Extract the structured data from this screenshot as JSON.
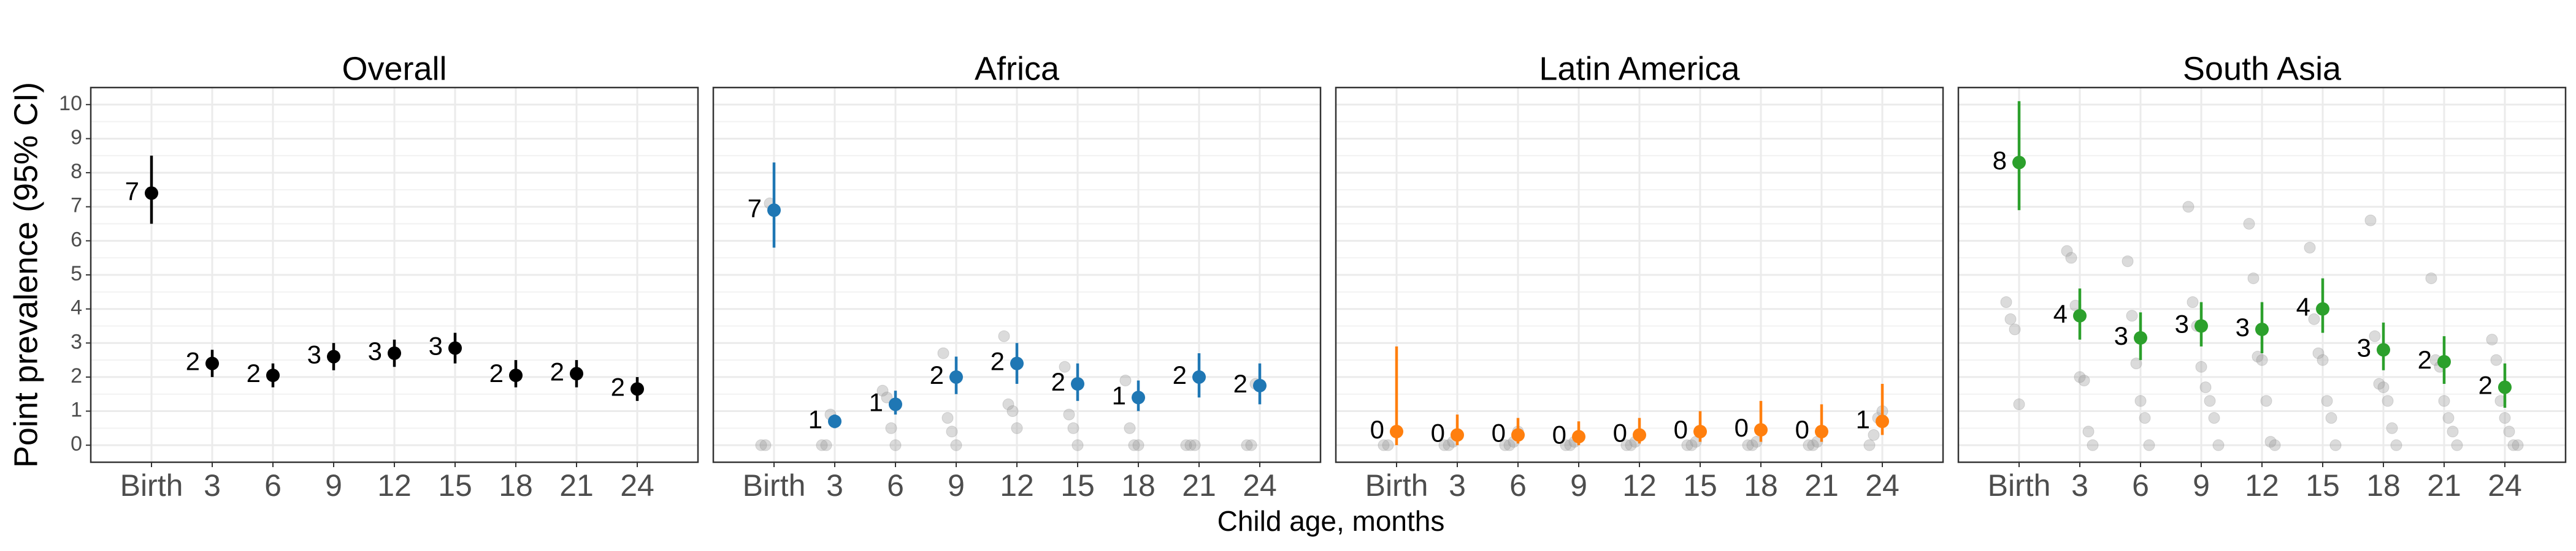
{
  "ylabel": "Point prevalence (95% CI)",
  "xlabel": "Child age, months",
  "chart_data": [
    {
      "type": "errorbar",
      "title": "Overall",
      "color": "#000000",
      "categories": [
        "Birth",
        "3",
        "6",
        "9",
        "12",
        "15",
        "18",
        "21",
        "24"
      ],
      "values": [
        7.4,
        2.4,
        2.05,
        2.6,
        2.7,
        2.85,
        2.05,
        2.1,
        1.65
      ],
      "value_labels": [
        "7",
        "2",
        "2",
        "3",
        "3",
        "3",
        "2",
        "2",
        "2"
      ],
      "lower": [
        6.5,
        2.0,
        1.7,
        2.2,
        2.3,
        2.4,
        1.7,
        1.7,
        1.3
      ],
      "upper": [
        8.5,
        2.8,
        2.4,
        3.0,
        3.1,
        3.3,
        2.5,
        2.5,
        2.0
      ],
      "points": {
        "x": [],
        "values": []
      },
      "ylim": [
        -0.5,
        10.5
      ],
      "yticks": [
        0,
        1,
        2,
        3,
        4,
        5,
        6,
        7,
        8,
        9,
        10
      ],
      "grid": true
    },
    {
      "type": "errorbar",
      "title": "Africa",
      "color": "#1f77b4",
      "categories": [
        "Birth",
        "3",
        "6",
        "9",
        "12",
        "15",
        "18",
        "21",
        "24"
      ],
      "values": [
        6.9,
        0.7,
        1.2,
        2.0,
        2.4,
        1.8,
        1.4,
        2.0,
        1.75
      ],
      "value_labels": [
        "7",
        "1",
        "1",
        "2",
        "2",
        "2",
        "1",
        "2",
        "2"
      ],
      "lower": [
        5.8,
        0.5,
        0.9,
        1.5,
        1.8,
        1.3,
        1.0,
        1.4,
        1.2
      ],
      "upper": [
        8.3,
        0.9,
        1.6,
        2.6,
        3.0,
        2.4,
        1.9,
        2.7,
        2.4
      ],
      "points": {
        "x": [
          "Birth",
          "Birth",
          "Birth",
          "3",
          "3",
          "3",
          "6",
          "6",
          "6",
          "6",
          "9",
          "9",
          "9",
          "9",
          "12",
          "12",
          "12",
          "12",
          "15",
          "15",
          "15",
          "15",
          "18",
          "18",
          "18",
          "18",
          "21",
          "21",
          "21",
          "24",
          "24",
          "24"
        ],
        "values": [
          0,
          0,
          7.1,
          0,
          0,
          0.9,
          1.6,
          1.4,
          0.5,
          0,
          2.7,
          0.8,
          0.4,
          0,
          3.2,
          1.2,
          1.0,
          0.5,
          2.3,
          0.9,
          0.5,
          0,
          1.9,
          0.5,
          0,
          0,
          0,
          0,
          0,
          0,
          0,
          1.8
        ]
      },
      "ylim": [
        -0.5,
        10.5
      ],
      "yticks": [
        0,
        1,
        2,
        3,
        4,
        5,
        6,
        7,
        8,
        9,
        10
      ],
      "grid": true
    },
    {
      "type": "errorbar",
      "title": "Latin America",
      "color": "#ff7f0e",
      "categories": [
        "Birth",
        "3",
        "6",
        "9",
        "12",
        "15",
        "18",
        "21",
        "24"
      ],
      "values": [
        0.4,
        0.3,
        0.3,
        0.25,
        0.3,
        0.4,
        0.45,
        0.4,
        0.7
      ],
      "value_labels": [
        "0",
        "0",
        "0",
        "0",
        "0",
        "0",
        "0",
        "0",
        "1"
      ],
      "lower": [
        0.0,
        0.0,
        0.05,
        0.0,
        0.05,
        0.1,
        0.1,
        0.1,
        0.3
      ],
      "upper": [
        2.9,
        0.9,
        0.8,
        0.7,
        0.8,
        1.0,
        1.3,
        1.2,
        1.8
      ],
      "points": {
        "x": [
          "Birth",
          "Birth",
          "3",
          "3",
          "3",
          "6",
          "6",
          "6",
          "6",
          "9",
          "9",
          "9",
          "12",
          "12",
          "12",
          "15",
          "15",
          "15",
          "15",
          "18",
          "18",
          "18",
          "21",
          "21",
          "21",
          "24",
          "24",
          "24",
          "24"
        ],
        "values": [
          0,
          0,
          0,
          0,
          0.1,
          0,
          0,
          0.1,
          0.4,
          0,
          0,
          0.1,
          0,
          0,
          0.1,
          0,
          0,
          0.1,
          0.4,
          0,
          0,
          0.1,
          0,
          0,
          0.1,
          0,
          0.3,
          0.8,
          1.0
        ]
      },
      "ylim": [
        -0.5,
        10.5
      ],
      "yticks": [
        0,
        1,
        2,
        3,
        4,
        5,
        6,
        7,
        8,
        9,
        10
      ],
      "grid": true
    },
    {
      "type": "errorbar",
      "title": "South Asia",
      "color": "#2ca02c",
      "categories": [
        "Birth",
        "3",
        "6",
        "9",
        "12",
        "15",
        "18",
        "21",
        "24"
      ],
      "values": [
        8.3,
        3.8,
        3.15,
        3.5,
        3.4,
        4.0,
        2.8,
        2.45,
        1.7
      ],
      "value_labels": [
        "8",
        "4",
        "3",
        "3",
        "3",
        "4",
        "3",
        "2",
        "2"
      ],
      "lower": [
        6.9,
        3.1,
        2.5,
        2.9,
        2.7,
        3.3,
        2.2,
        1.8,
        1.1
      ],
      "upper": [
        10.1,
        4.6,
        3.9,
        4.2,
        4.2,
        4.9,
        3.6,
        3.2,
        2.4
      ],
      "points": {
        "x": [
          "Birth",
          "Birth",
          "Birth",
          "Birth",
          "3",
          "3",
          "3",
          "3",
          "3",
          "3",
          "3",
          "6",
          "6",
          "6",
          "6",
          "6",
          "6",
          "9",
          "9",
          "9",
          "9",
          "9",
          "9",
          "9",
          "9",
          "12",
          "12",
          "12",
          "12",
          "12",
          "12",
          "12",
          "15",
          "15",
          "15",
          "15",
          "15",
          "15",
          "15",
          "18",
          "18",
          "18",
          "18",
          "18",
          "18",
          "18",
          "21",
          "21",
          "21",
          "21",
          "21",
          "21",
          "21",
          "24",
          "24",
          "24",
          "24",
          "24",
          "24",
          "24"
        ],
        "values": [
          4.2,
          3.7,
          3.4,
          1.2,
          5.7,
          5.5,
          4.1,
          2.0,
          1.9,
          0.4,
          0,
          5.4,
          3.8,
          2.4,
          1.3,
          0.8,
          0,
          7.0,
          4.2,
          3.5,
          2.3,
          1.7,
          1.3,
          0.8,
          0,
          6.5,
          4.9,
          2.6,
          2.5,
          1.3,
          0.1,
          0,
          5.8,
          3.7,
          2.7,
          2.5,
          1.3,
          0.8,
          0,
          6.6,
          3.2,
          1.8,
          1.7,
          1.3,
          0.5,
          0,
          4.9,
          2.5,
          2.3,
          1.3,
          0.8,
          0.4,
          0,
          3.1,
          2.5,
          1.3,
          0.8,
          0.4,
          0,
          0
        ]
      },
      "ylim": [
        -0.5,
        10.5
      ],
      "yticks": [
        0,
        1,
        2,
        3,
        4,
        5,
        6,
        7,
        8,
        9,
        10
      ],
      "grid": true
    }
  ]
}
